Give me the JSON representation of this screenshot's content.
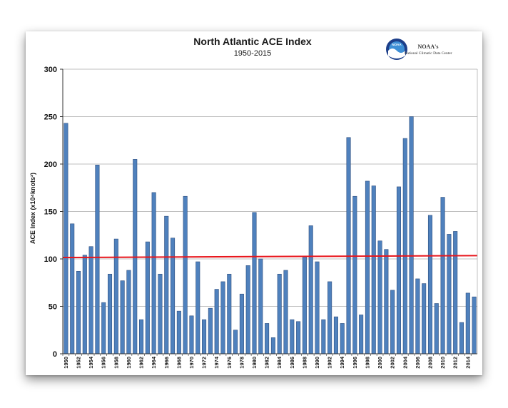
{
  "chart_data": {
    "type": "bar",
    "title": "North Atlantic ACE Index",
    "subtitle": "1950-2015",
    "ylabel": "ACE Index (x10⁴knots²)",
    "ylim": [
      0,
      300
    ],
    "yticks": [
      0,
      50,
      100,
      150,
      200,
      250,
      300
    ],
    "xtick_labels": [
      "1950",
      "1952",
      "1954",
      "1956",
      "1958",
      "1960",
      "1962",
      "1964",
      "1966",
      "1968",
      "1970",
      "1972",
      "1974",
      "1976",
      "1978",
      "1980",
      "1982",
      "1984",
      "1986",
      "1988",
      "1990",
      "1992",
      "1994",
      "1996",
      "1998",
      "2000",
      "2002",
      "2004",
      "2006",
      "2008",
      "2010",
      "2012",
      "2014"
    ],
    "grid": true,
    "colors": {
      "bar": "#4f81bd",
      "bar_edge": "#2f4f7f",
      "trend": "#e8151b",
      "grid": "#aaaaaa"
    },
    "series": [
      {
        "x": [
          1950,
          1951,
          1952,
          1953,
          1954,
          1955,
          1956,
          1957,
          1958,
          1959,
          1960,
          1961,
          1962,
          1963,
          1964,
          1965,
          1966,
          1967,
          1968,
          1969,
          1970,
          1971,
          1972,
          1973,
          1974,
          1975,
          1976,
          1977,
          1978,
          1979,
          1980,
          1981,
          1982,
          1983,
          1984,
          1985,
          1986,
          1987,
          1988,
          1989,
          1990,
          1991,
          1992,
          1993,
          1994,
          1995,
          1996,
          1997,
          1998,
          1999,
          2000,
          2001,
          2002,
          2003,
          2004,
          2005,
          2006,
          2007,
          2008,
          2009,
          2010,
          2011,
          2012,
          2013,
          2014,
          2015
        ],
        "values": [
          243,
          137,
          87,
          104,
          113,
          199,
          54,
          84,
          121,
          77,
          88,
          205,
          36,
          118,
          170,
          84,
          145,
          122,
          45,
          166,
          40,
          97,
          36,
          48,
          68,
          76,
          84,
          25,
          63,
          93,
          149,
          100,
          32,
          17,
          84,
          88,
          36,
          34,
          103,
          135,
          97,
          36,
          76,
          39,
          32,
          228,
          166,
          41,
          182,
          177,
          119,
          110,
          67,
          176,
          227,
          250,
          79,
          74,
          146,
          53,
          165,
          126,
          129,
          33,
          64,
          60
        ]
      }
    ],
    "trend": {
      "start": 101.5,
      "end": 103.5
    }
  },
  "logo": {
    "emblem_text": "NOAA",
    "name": "NOAA's",
    "subtitle": "National Climatic Data Center"
  }
}
